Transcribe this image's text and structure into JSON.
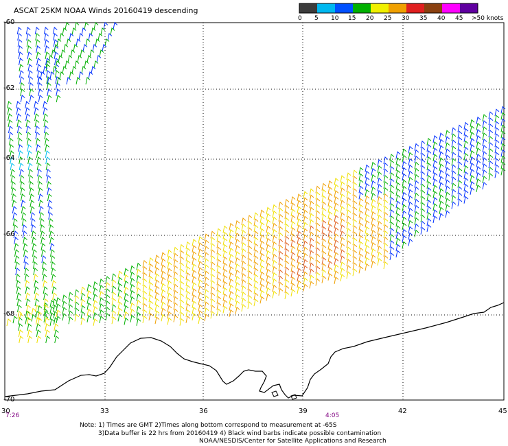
{
  "title": "ASCAT 25KM NOAA Winds 20160419 descending",
  "legend": {
    "ticks": [
      "0",
      "5",
      "10",
      "15",
      "20",
      "25",
      "30",
      "35",
      "40",
      "45",
      ">50 knots"
    ],
    "colors": [
      "#3c3c3c",
      "#00b8f0",
      "#0050ff",
      "#00b000",
      "#f0f000",
      "#f0a000",
      "#e02020",
      "#8a4010",
      "#ff00ff",
      "#6000a0"
    ]
  },
  "axes": {
    "lat_labels": [
      "-60",
      "-62",
      "-64",
      "-66",
      "-68",
      "-70"
    ],
    "lon_labels": [
      "30",
      "33",
      "36",
      "39",
      "42",
      "45"
    ]
  },
  "times": {
    "left": "7:26",
    "right": "4:05"
  },
  "notes": {
    "line1": "Note: 1) Times are GMT 2)Times along bottom correspond to measurement at -65S",
    "line2": "3)Data buffer is 22 hrs from 20160419 4) Black wind barbs indicate possible contamination",
    "line3": "NOAA/NESDIS/Center for Satellite Applications and Research"
  },
  "wind_colors": {
    "blue": "#0030ff",
    "green": "#00b000",
    "yellow": "#f0e000",
    "orange": "#f0a000",
    "red_orange": "#e06020",
    "cyan": "#00c0f0",
    "coast": "#000000"
  }
}
